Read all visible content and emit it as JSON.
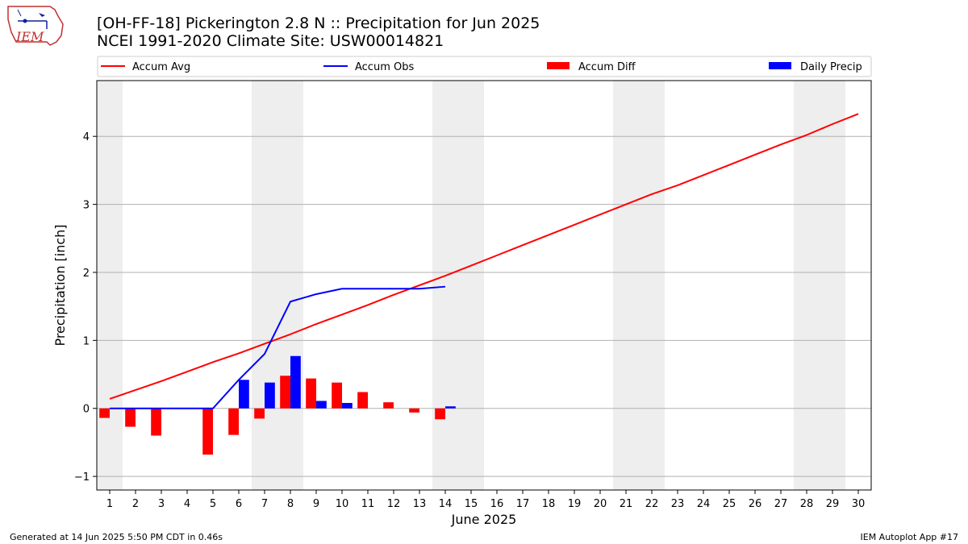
{
  "header": {
    "title_line1": "[OH-FF-18] Pickerington 2.8 N :: Precipitation for Jun 2025",
    "title_line2": "NCEI 1991-2020 Climate Site: USW00014821",
    "logo_text": "IEM"
  },
  "footer": {
    "left": "Generated at 14 Jun 2025 5:50 PM CDT in 0.46s",
    "right": "IEM Autoplot App #17"
  },
  "colors": {
    "avg": "#ff0000",
    "obs": "#0000ff",
    "diff": "#ff0000",
    "daily": "#0000ff",
    "weekend_band": "#eeeeee",
    "grid": "#b0b0b0"
  },
  "chart_data": {
    "type": "bar",
    "xlabel": "June 2025",
    "ylabel": "Precipitation [inch]",
    "xlim": [
      0.5,
      30.5
    ],
    "ylim": [
      -1.2,
      4.82
    ],
    "yticks": [
      -1,
      0,
      1,
      2,
      3,
      4
    ],
    "ytick_labels": [
      "−1",
      "0",
      "1",
      "2",
      "3",
      "4"
    ],
    "x": [
      1,
      2,
      3,
      4,
      5,
      6,
      7,
      8,
      9,
      10,
      11,
      12,
      13,
      14,
      15,
      16,
      17,
      18,
      19,
      20,
      21,
      22,
      23,
      24,
      25,
      26,
      27,
      28,
      29,
      30
    ],
    "xtick_labels": [
      "1",
      "2",
      "3",
      "4",
      "5",
      "6",
      "7",
      "8",
      "9",
      "10",
      "11",
      "12",
      "13",
      "14",
      "15",
      "16",
      "17",
      "18",
      "19",
      "20",
      "21",
      "22",
      "23",
      "24",
      "25",
      "26",
      "27",
      "28",
      "29",
      "30"
    ],
    "weekend_bands": [
      [
        0.5,
        1.5
      ],
      [
        6.5,
        8.5
      ],
      [
        13.5,
        15.5
      ],
      [
        20.5,
        22.5
      ],
      [
        27.5,
        29.5
      ]
    ],
    "grid": "horizontal",
    "legend": {
      "placement": "top",
      "entries": [
        {
          "label": "Accum Avg",
          "kind": "line",
          "color": "#ff0000"
        },
        {
          "label": "Accum Obs",
          "kind": "line",
          "color": "#0000ff"
        },
        {
          "label": "Accum Diff",
          "kind": "bar",
          "color": "#ff0000"
        },
        {
          "label": "Daily Precip",
          "kind": "bar",
          "color": "#0000ff"
        }
      ]
    },
    "series": [
      {
        "name": "Accum Avg",
        "type": "line",
        "x": [
          1,
          2,
          3,
          4,
          5,
          6,
          7,
          8,
          9,
          10,
          11,
          12,
          13,
          14,
          15,
          16,
          17,
          18,
          19,
          20,
          21,
          22,
          23,
          24,
          25,
          26,
          27,
          28,
          29,
          30
        ],
        "values": [
          0.14,
          0.27,
          0.4,
          0.54,
          0.68,
          0.81,
          0.95,
          1.09,
          1.24,
          1.38,
          1.52,
          1.67,
          1.81,
          1.95,
          2.1,
          2.25,
          2.4,
          2.55,
          2.7,
          2.85,
          3.0,
          3.15,
          3.28,
          3.43,
          3.58,
          3.73,
          3.88,
          4.02,
          4.18,
          4.33
        ]
      },
      {
        "name": "Accum Obs",
        "type": "line",
        "x": [
          1,
          2,
          3,
          4,
          5,
          6,
          7,
          8,
          9,
          10,
          11,
          12,
          13,
          14
        ],
        "values": [
          0.0,
          0.0,
          0.0,
          null,
          0.0,
          0.42,
          0.8,
          1.57,
          1.68,
          1.76,
          1.76,
          1.76,
          1.76,
          1.79
        ]
      },
      {
        "name": "Accum Diff",
        "type": "bar",
        "x": [
          1,
          2,
          3,
          5,
          6,
          7,
          8,
          9,
          10,
          11,
          12,
          13,
          14
        ],
        "values": [
          -0.14,
          -0.27,
          -0.4,
          -0.68,
          -0.39,
          -0.15,
          0.48,
          0.44,
          0.38,
          0.24,
          0.09,
          -0.06,
          -0.16
        ]
      },
      {
        "name": "Daily Precip",
        "type": "bar",
        "x": [
          6,
          7,
          8,
          9,
          10,
          14
        ],
        "values": [
          0.42,
          0.38,
          0.77,
          0.11,
          0.08,
          0.03
        ]
      }
    ]
  }
}
